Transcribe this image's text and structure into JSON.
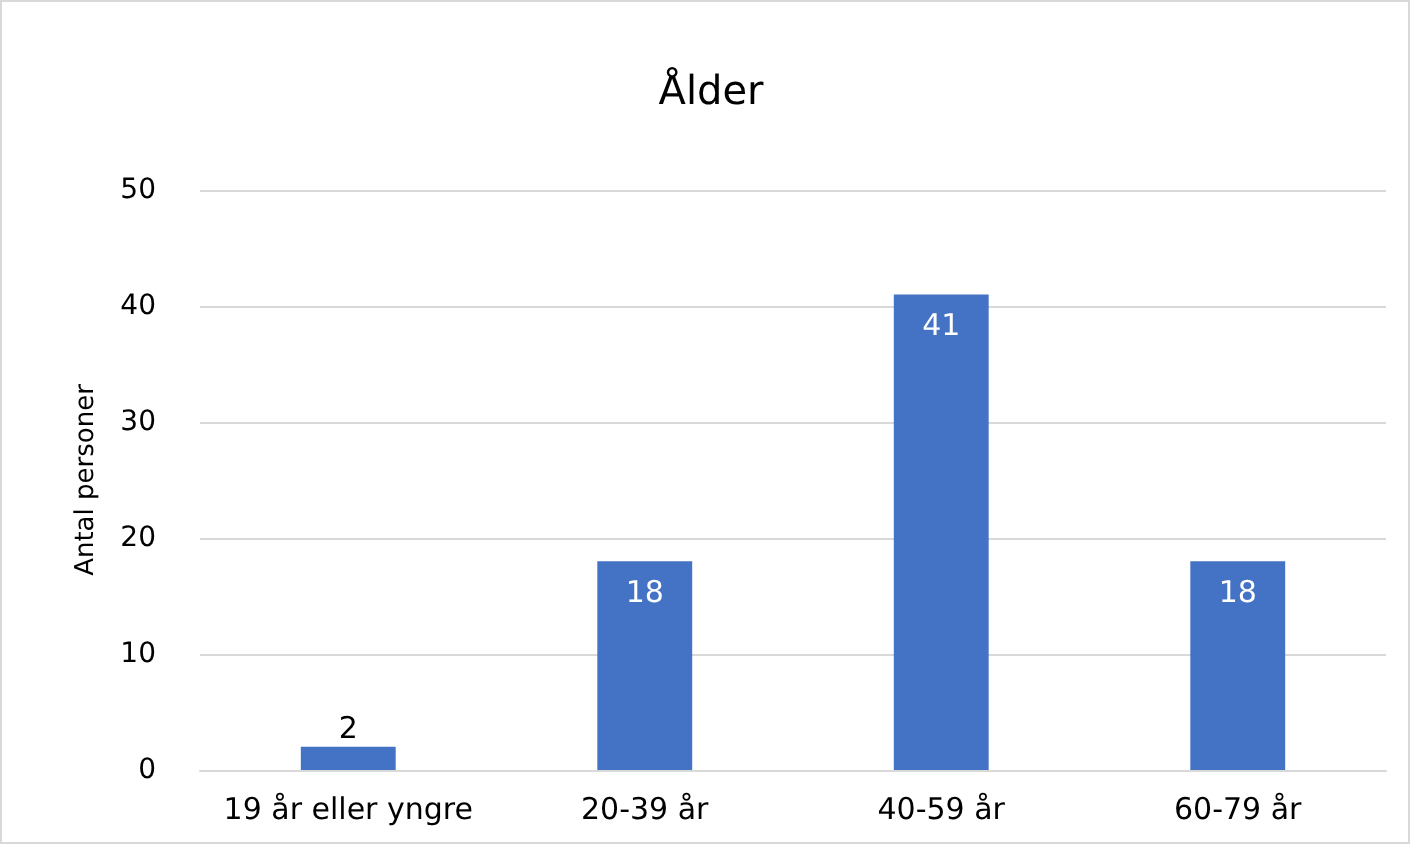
{
  "chart_data": {
    "type": "bar",
    "title": "Ålder",
    "ylabel": "Antal personer",
    "categories": [
      "19 år eller yngre",
      "20-39 år",
      "40-59 år",
      "60-79 år"
    ],
    "values": [
      2,
      18,
      41,
      18
    ],
    "color": "#4472c4",
    "ylim": [
      0,
      50
    ],
    "yticks": [
      0,
      10,
      20,
      30,
      40,
      50
    ],
    "grid": "y",
    "data_labels": true
  }
}
